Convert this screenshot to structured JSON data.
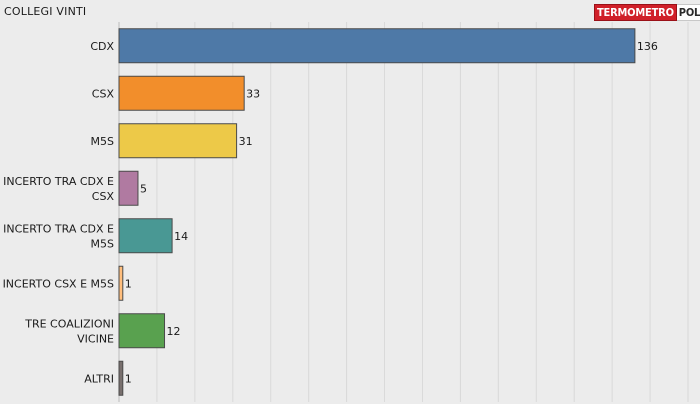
{
  "title": "COLLEGI VINTI",
  "logo": {
    "part1": "TERMOMETRO",
    "part2": "POLITICO"
  },
  "chart_data": {
    "type": "bar",
    "orientation": "horizontal",
    "title": "COLLEGI VINTI",
    "categories": [
      "CDX",
      "CSX",
      "M5S",
      "INCERTO TRA CDX E CSX",
      "INCERTO TRA CDX E M5S",
      "INCERTO CSX E M5S",
      "TRE COALIZIONI VICINE",
      "ALTRI"
    ],
    "category_lines": [
      [
        "CDX"
      ],
      [
        "CSX"
      ],
      [
        "M5S"
      ],
      [
        "INCERTO TRA CDX E",
        "CSX"
      ],
      [
        "INCERTO TRA CDX E",
        "M5S"
      ],
      [
        "INCERTO CSX E M5S"
      ],
      [
        "TRE COALIZIONI",
        "VICINE"
      ],
      [
        "ALTRI"
      ]
    ],
    "values": [
      136,
      33,
      31,
      5,
      14,
      1,
      12,
      1
    ],
    "colors": [
      "#4e79a7",
      "#f28e2b",
      "#edc948",
      "#b07aa1",
      "#499894",
      "#ffbe7d",
      "#59a14f",
      "#79706e"
    ],
    "xlim": [
      0,
      150
    ],
    "grid": true,
    "data_labels": true
  }
}
